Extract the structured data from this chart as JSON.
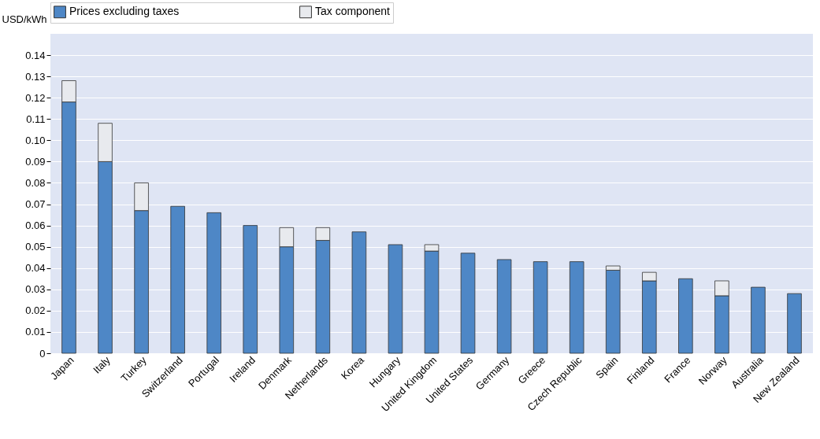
{
  "chart_data": {
    "type": "bar",
    "ylabel": "USD/kWh",
    "stacked": true,
    "grid": "y",
    "legend": "top",
    "categories": [
      "Japan",
      "Italy",
      "Turkey",
      "Switzerland",
      "Portugal",
      "Ireland",
      "Denmark",
      "Netherlands",
      "Korea",
      "Hungary",
      "United Kingdom",
      "United States",
      "Germany",
      "Greece",
      "Czech Republic",
      "Spain",
      "Finland",
      "France",
      "Norway",
      "Australia",
      "New Zealand"
    ],
    "series": [
      {
        "name": "Prices excluding taxes",
        "color": "#4e87c6",
        "values": [
          0.118,
          0.09,
          0.067,
          0.069,
          0.066,
          0.06,
          0.05,
          0.053,
          0.057,
          0.051,
          0.048,
          0.047,
          0.044,
          0.043,
          0.043,
          0.039,
          0.034,
          0.035,
          0.027,
          0.031,
          0.028
        ]
      },
      {
        "name": "Tax component",
        "color": "#e8eaee",
        "values": [
          0.01,
          0.018,
          0.013,
          null,
          null,
          null,
          0.009,
          0.006,
          null,
          null,
          0.003,
          null,
          null,
          null,
          null,
          0.002,
          0.004,
          null,
          0.007,
          null,
          null
        ]
      }
    ],
    "ylim": [
      0,
      0.15
    ],
    "yticks": [
      0,
      0.01,
      0.02,
      0.03,
      0.04,
      0.05,
      0.06,
      0.07,
      0.08,
      0.09,
      {
        "value": 0.1,
        "label": "0.10"
      },
      0.11,
      0.12,
      0.13,
      0.14
    ]
  }
}
